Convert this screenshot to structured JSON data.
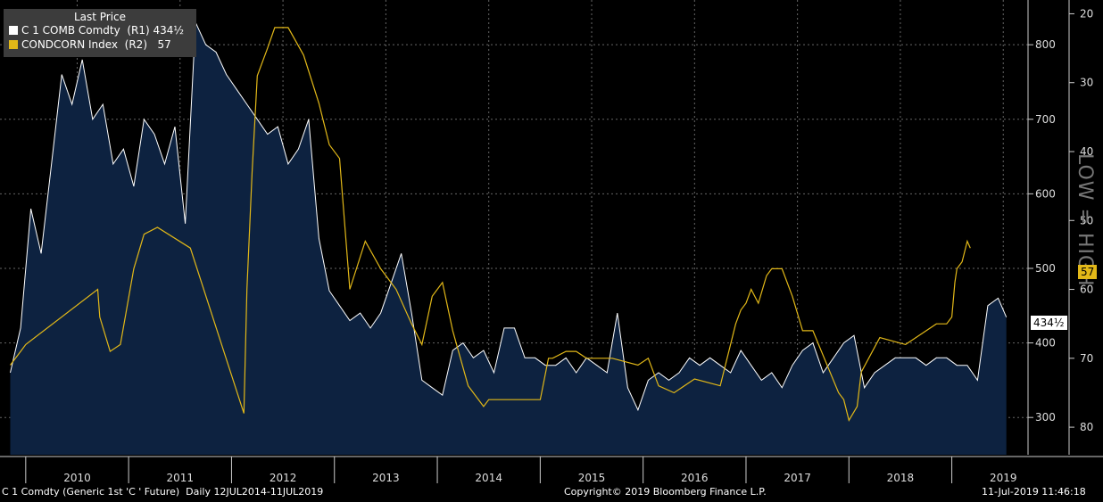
{
  "legend": {
    "title": "Last Price",
    "series": [
      {
        "label": "C 1 COMB Comdty  (R1) 434½",
        "color": "#ffffff"
      },
      {
        "label": "CONDCORN Index  (R2)   57",
        "color": "#e2b818"
      }
    ]
  },
  "tags": {
    "price": "434½",
    "index": "57"
  },
  "watermark": "LOW = HIGH",
  "footer": {
    "left": "C 1 Comdty (Generic 1st 'C ' Future)  Daily 12JUL2014-11JUL2019",
    "center": "Copyright© 2019 Bloomberg Finance L.P.",
    "right": "11-Jul-2019 11:46:18"
  },
  "colors": {
    "background": "#000000",
    "area": "#0d2240",
    "price": "#ffffff",
    "index": "#e2b818",
    "tag_price_bg": "#ffffff",
    "tag_index_bg": "#e2b818"
  },
  "chart_data": {
    "type": "area",
    "x_ticks": [
      "2010",
      "2011",
      "2012",
      "2013",
      "2014",
      "2015",
      "2016",
      "2017",
      "2018",
      "2019"
    ],
    "axes": {
      "r1": {
        "ticks": [
          300,
          400,
          500,
          600,
          700,
          800
        ],
        "range": [
          250,
          860
        ]
      },
      "r2": {
        "ticks": [
          20,
          30,
          40,
          50,
          60,
          70,
          80
        ],
        "range": [
          84,
          18
        ],
        "inverted": true
      }
    },
    "grid": true,
    "series": [
      {
        "name": "C 1 COMB Comdty",
        "axis": "r1",
        "x": [
          2009.85,
          2009.95,
          2010.05,
          2010.15,
          2010.25,
          2010.35,
          2010.45,
          2010.55,
          2010.65,
          2010.75,
          2010.85,
          2010.95,
          2011.05,
          2011.15,
          2011.25,
          2011.35,
          2011.45,
          2011.55,
          2011.65,
          2011.75,
          2011.85,
          2011.95,
          2012.05,
          2012.15,
          2012.25,
          2012.35,
          2012.45,
          2012.55,
          2012.65,
          2012.75,
          2012.85,
          2012.95,
          2013.05,
          2013.15,
          2013.25,
          2013.35,
          2013.45,
          2013.55,
          2013.65,
          2013.75,
          2013.85,
          2013.95,
          2014.05,
          2014.15,
          2014.25,
          2014.35,
          2014.45,
          2014.55,
          2014.65,
          2014.75,
          2014.85,
          2014.95,
          2015.05,
          2015.15,
          2015.25,
          2015.35,
          2015.45,
          2015.55,
          2015.65,
          2015.75,
          2015.85,
          2015.95,
          2016.05,
          2016.15,
          2016.25,
          2016.35,
          2016.45,
          2016.55,
          2016.65,
          2016.75,
          2016.85,
          2016.95,
          2017.05,
          2017.15,
          2017.25,
          2017.35,
          2017.45,
          2017.55,
          2017.65,
          2017.75,
          2017.85,
          2017.95,
          2018.05,
          2018.15,
          2018.25,
          2018.35,
          2018.45,
          2018.55,
          2018.65,
          2018.75,
          2018.85,
          2018.95,
          2019.05,
          2019.15,
          2019.25,
          2019.35,
          2019.45,
          2019.53
        ],
        "values": [
          360,
          420,
          580,
          520,
          640,
          760,
          720,
          780,
          700,
          720,
          640,
          660,
          610,
          700,
          680,
          640,
          690,
          560,
          830,
          800,
          790,
          760,
          740,
          720,
          700,
          680,
          690,
          640,
          660,
          700,
          540,
          470,
          450,
          430,
          440,
          420,
          440,
          480,
          520,
          440,
          350,
          340,
          330,
          390,
          400,
          380,
          390,
          360,
          420,
          420,
          380,
          380,
          370,
          370,
          380,
          360,
          380,
          370,
          360,
          440,
          340,
          310,
          350,
          360,
          350,
          360,
          380,
          370,
          380,
          370,
          360,
          390,
          370,
          350,
          360,
          340,
          370,
          390,
          400,
          360,
          380,
          400,
          410,
          340,
          360,
          370,
          380,
          380,
          380,
          370,
          380,
          380,
          370,
          370,
          350,
          450,
          460,
          434.5
        ]
      },
      {
        "name": "CONDCORN Index",
        "axis": "r2",
        "x": [
          2009.85,
          2009.95,
          2010.0,
          2010.7,
          2010.72,
          2010.82,
          2010.92,
          2011.05,
          2011.15,
          2011.28,
          2011.6,
          2012.12,
          2012.15,
          2012.2,
          2012.25,
          2012.35,
          2012.42,
          2012.55,
          2012.7,
          2012.85,
          2012.95,
          2013.05,
          2013.15,
          2013.3,
          2013.45,
          2013.6,
          2013.75,
          2013.85,
          2013.95,
          2014.05,
          2014.15,
          2014.3,
          2014.45,
          2014.5,
          2015.0,
          2015.08,
          2015.12,
          2015.25,
          2015.35,
          2015.45,
          2015.55,
          2015.7,
          2015.95,
          2016.05,
          2016.15,
          2016.3,
          2016.5,
          2016.75,
          2016.9,
          2016.95,
          2017.0,
          2017.05,
          2017.12,
          2017.2,
          2017.25,
          2017.35,
          2017.45,
          2017.55,
          2017.65,
          2017.9,
          2017.95,
          2018.0,
          2018.08,
          2018.12,
          2018.3,
          2018.55,
          2018.85,
          2018.95,
          2019.0,
          2019.03,
          2019.05,
          2019.1,
          2019.15,
          2019.18
        ],
        "values": [
          71,
          69,
          68,
          60,
          64,
          69,
          68,
          57,
          52,
          51,
          54,
          78,
          60,
          43,
          29,
          25,
          22,
          22,
          26,
          33,
          39,
          41,
          60,
          53,
          57,
          60,
          65,
          68,
          61,
          59,
          66,
          74,
          77,
          76,
          76,
          70,
          70,
          69,
          69,
          70,
          70,
          70,
          71,
          70,
          74,
          75,
          73,
          74,
          65,
          63,
          62,
          60,
          62,
          58,
          57,
          57,
          61,
          66,
          66,
          75,
          76,
          79,
          77,
          72,
          67,
          68,
          65,
          65,
          64,
          59,
          57,
          56,
          53,
          54
        ]
      }
    ]
  }
}
